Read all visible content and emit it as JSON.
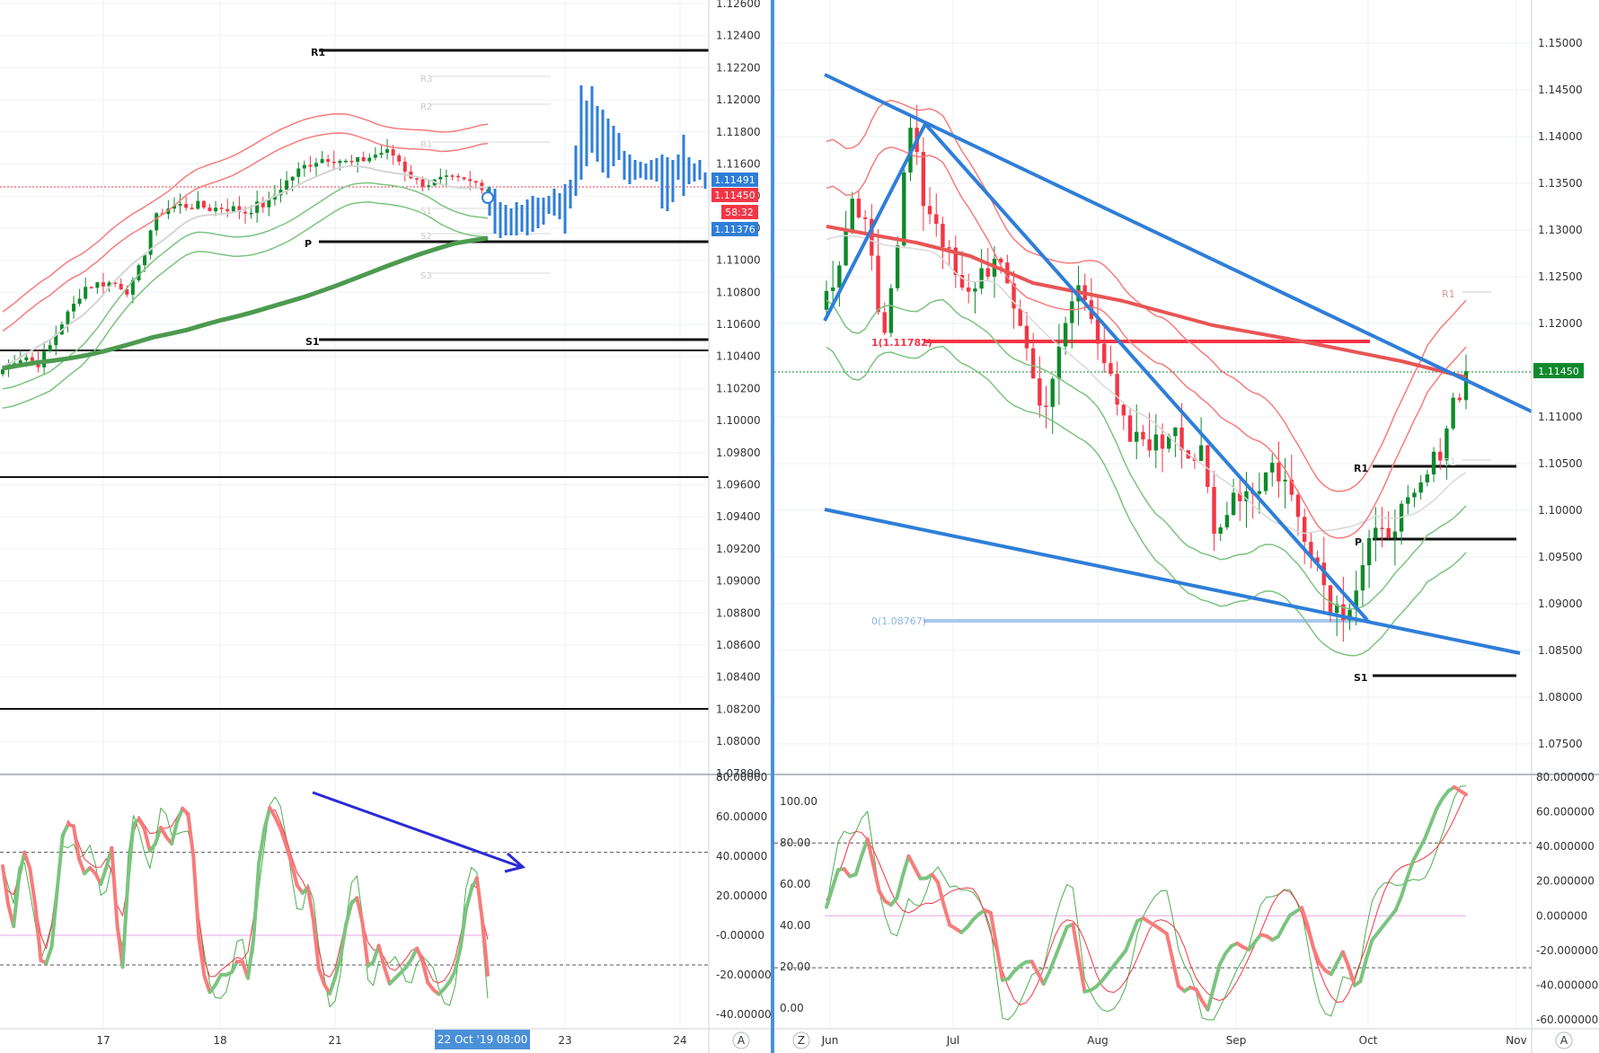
{
  "left_chart": {
    "y_ticks": [
      "1.12600",
      "1.12400",
      "1.12200",
      "1.12000",
      "1.11800",
      "1.11600",
      "1.11400",
      "1.11200",
      "1.11000",
      "1.10800",
      "1.10600",
      "1.10400",
      "1.10200",
      "1.10000",
      "1.09800",
      "1.09600",
      "1.09400",
      "1.09200",
      "1.09000",
      "1.08800",
      "1.08600",
      "1.08400",
      "1.08200",
      "1.08000",
      "1.07800"
    ],
    "x_ticks": [
      "17",
      "18",
      "21",
      "23",
      "24"
    ],
    "crosshair_date": "22 Oct '19",
    "crosshair_time": "08:00",
    "price_tags": {
      "upper": "1.11491",
      "current": "1.11450",
      "countdown": "58:32",
      "lower": "1.11376"
    },
    "levels": {
      "R1": "R1",
      "P": "P",
      "S1": "S1"
    },
    "faded_levels": {
      "R3": "R3",
      "R2": "R2",
      "R1": "R1",
      "S1": "S1",
      "S2": "S2",
      "S3": "S3"
    },
    "osc_ticks": [
      "80.00000",
      "60.00000",
      "40.00000",
      "20.00000",
      "-0.00000",
      "-20.00000",
      "-40.00000"
    ],
    "scale_buttons": {
      "auto": "A"
    }
  },
  "right_chart": {
    "y_ticks": [
      "1.15000",
      "1.14500",
      "1.14000",
      "1.13500",
      "1.13000",
      "1.12500",
      "1.12000",
      "1.11500",
      "1.11000",
      "1.10500",
      "1.10000",
      "1.09500",
      "1.09000",
      "1.08500",
      "1.08000",
      "1.07500"
    ],
    "x_ticks": [
      "Jun",
      "Jul",
      "Aug",
      "Sep",
      "Oct",
      "Nov"
    ],
    "price_tag": "1.11450",
    "fib_levels": {
      "one": "1(1.11782)",
      "zero": "0(1.08767)"
    },
    "levels": {
      "R1": "R1",
      "P": "P",
      "S1": "S1"
    },
    "faded_levels": {
      "R1": "R1",
      "S1": "S1"
    },
    "osc_left_ticks": [
      "100.00",
      "80.00",
      "60.00",
      "40.00",
      "20.00",
      "0.00"
    ],
    "osc_right_ticks": [
      "80.000000",
      "60.000000",
      "40.000000",
      "20.000000",
      "0.000000",
      "-20.000000",
      "-40.000000",
      "-60.000000"
    ],
    "scale_buttons": {
      "log": "Z",
      "auto": "A"
    }
  },
  "colors": {
    "blue": "#2f7ed8",
    "red": "#f23645",
    "green": "#0e8a2c",
    "red_band": "#f77c7c",
    "green_band": "#7bc47f"
  }
}
